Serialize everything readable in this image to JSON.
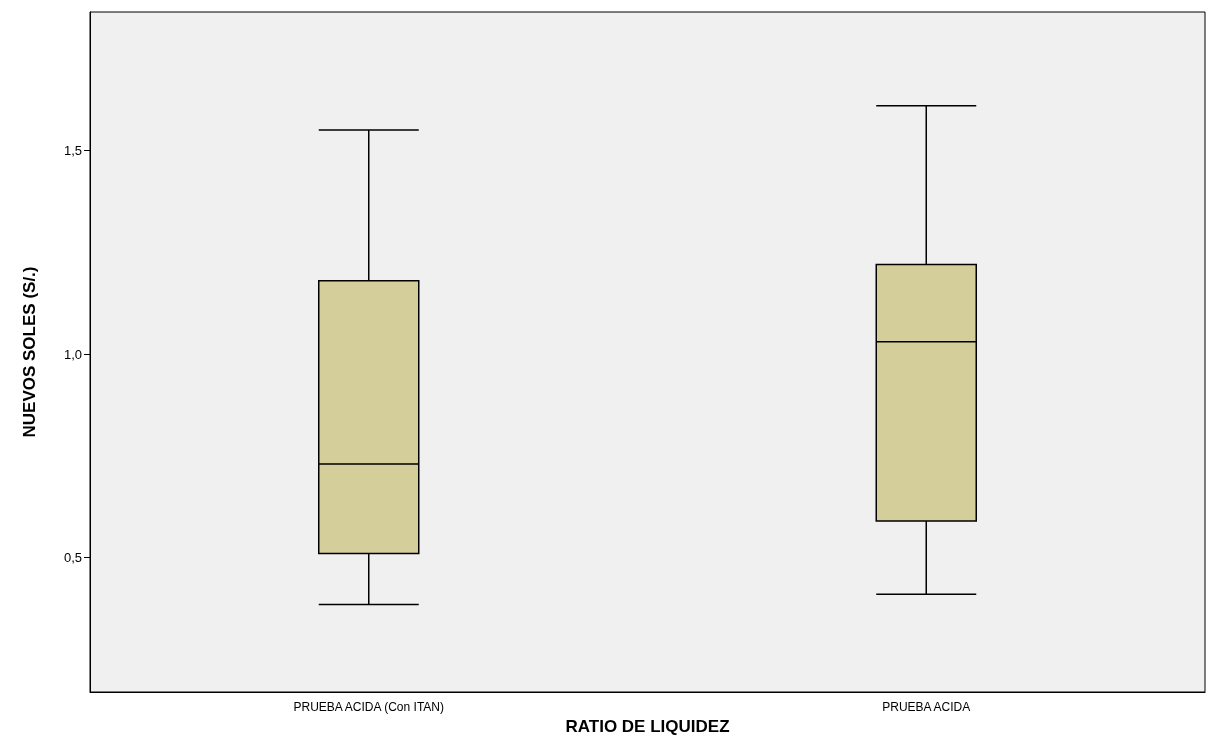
{
  "chart_data": {
    "type": "box",
    "xlabel": "RATIO DE LIQUIDEZ",
    "ylabel": "NUEVOS SOLES (S/.)",
    "categories": [
      "PRUEBA ACIDA (Con ITAN)",
      "PRUEBA ACIDA"
    ],
    "boxes": [
      {
        "low": 0.385,
        "q1": 0.51,
        "median": 0.73,
        "q3": 1.18,
        "high": 1.55
      },
      {
        "low": 0.41,
        "q1": 0.59,
        "median": 1.03,
        "q3": 1.22,
        "high": 1.61
      }
    ],
    "color": "#d3ce9a",
    "ylim": [
      0.17,
      1.84
    ],
    "yticks": [
      {
        "value": 0.5,
        "label": "0,5"
      },
      {
        "value": 1.0,
        "label": "1,0"
      },
      {
        "value": 1.5,
        "label": "1,5"
      }
    ],
    "grid": false
  }
}
